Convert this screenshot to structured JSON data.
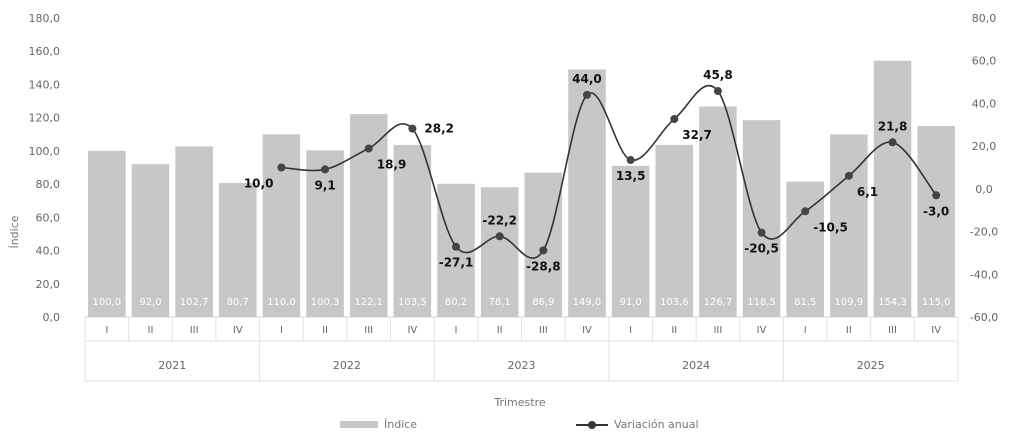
{
  "chart_data": {
    "type": "bar",
    "xlabel": "Trimestre",
    "ylabel": "Índice",
    "ylim": [
      0,
      180
    ],
    "y2lim": [
      -60,
      80
    ],
    "y_ticks": [
      "0,0",
      "20,0",
      "40,0",
      "60,0",
      "80,0",
      "100,0",
      "120,0",
      "140,0",
      "160,0",
      "180,0"
    ],
    "y2_ticks": [
      "-60,0",
      "-40,0",
      "-20,0",
      "0,0",
      "20,0",
      "40,0",
      "60,0",
      "80,0"
    ],
    "categories": [
      "I",
      "II",
      "III",
      "IV",
      "I",
      "II",
      "III",
      "IV",
      "I",
      "II",
      "III",
      "IV",
      "I",
      "II",
      "III",
      "IV",
      "I",
      "II",
      "III",
      "IV"
    ],
    "years": [
      "2021",
      "2022",
      "2023",
      "2024",
      "2025"
    ],
    "series": [
      {
        "name": "Índice",
        "type": "bar",
        "color": "#c7c7c7",
        "values": [
          100.0,
          92.0,
          102.7,
          80.7,
          110.0,
          100.3,
          122.1,
          103.5,
          80.2,
          78.1,
          86.9,
          149.0,
          91.0,
          103.6,
          126.7,
          118.5,
          81.5,
          109.9,
          154.3,
          115.0
        ],
        "labels": [
          "100,0",
          "92,0",
          "102,7",
          "80,7",
          "110,0",
          "100,3",
          "122,1",
          "103,5",
          "80,2",
          "78,1",
          "86,9",
          "149,0",
          "91,0",
          "103,6",
          "126,7",
          "118,5",
          "81,5",
          "109,9",
          "154,3",
          "115,0"
        ]
      },
      {
        "name": "Variación anual",
        "type": "line",
        "axis": "right",
        "color": "#333333",
        "values": [
          null,
          null,
          null,
          null,
          10.0,
          9.1,
          18.9,
          28.2,
          -27.1,
          -22.2,
          -28.8,
          44.0,
          13.5,
          32.7,
          45.8,
          -20.5,
          -10.5,
          6.1,
          21.8,
          -3.0
        ],
        "labels": [
          "",
          "",
          "",
          "",
          "10,0",
          "9,1",
          "18,9",
          "28,2",
          "-27,1",
          "-22,2",
          "-28,8",
          "44,0",
          "13,5",
          "32,7",
          "45,8",
          "-20,5",
          "-10,5",
          "6,1",
          "21,8",
          "-3,0"
        ]
      }
    ],
    "legend": "bottom"
  }
}
